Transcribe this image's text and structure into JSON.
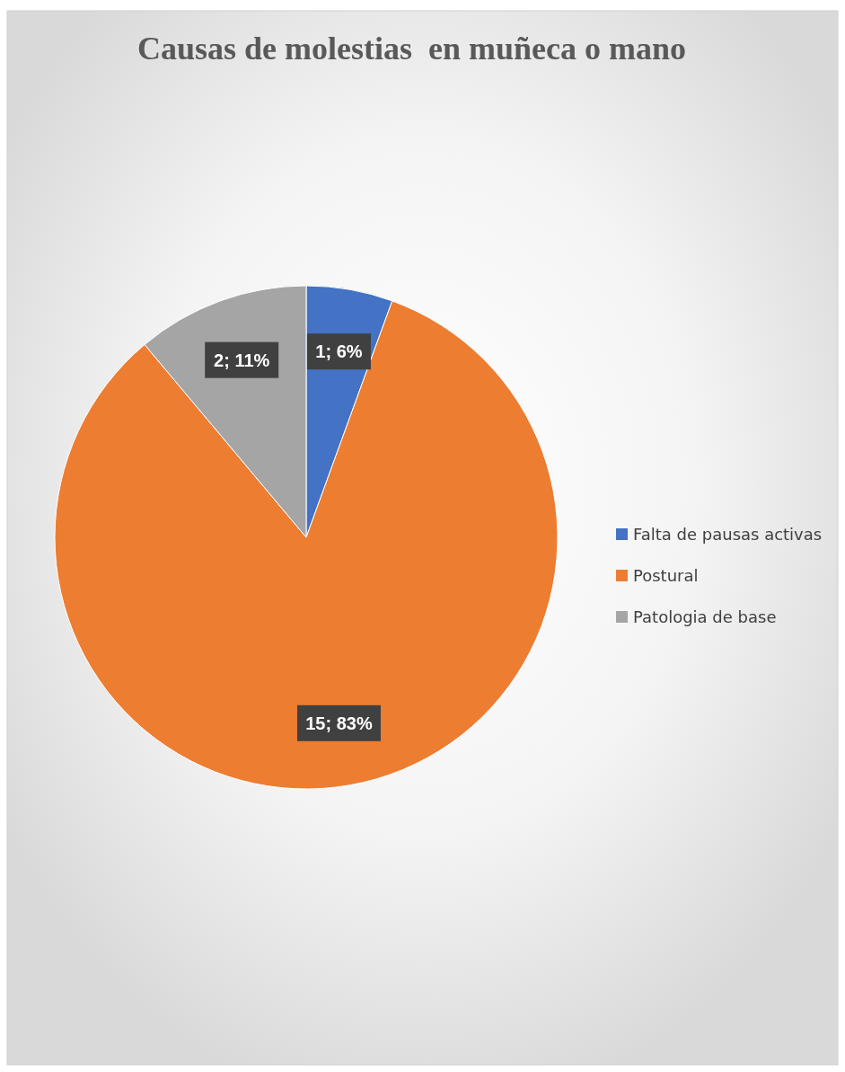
{
  "chart_data": {
    "type": "pie",
    "title": "Causas de molestias  en muñeca o mano",
    "categories": [
      "Falta de pausas activas",
      "Postural",
      "Patologia de base"
    ],
    "values": [
      1,
      15,
      2
    ],
    "colors": [
      "#4472c4",
      "#ed7d31",
      "#a5a5a5"
    ],
    "value_labels": [
      "1; 6%",
      "15; 83%",
      "2; 11%"
    ],
    "legend": "right"
  }
}
